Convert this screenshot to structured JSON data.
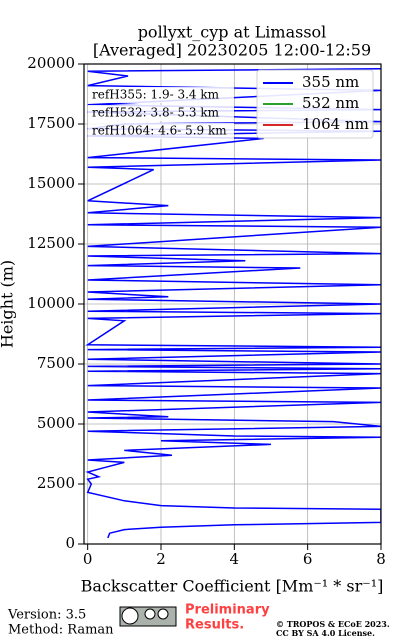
{
  "chart_data": {
    "type": "line",
    "title": [
      "pollyxt_cyp at Limassol",
      "[Averaged] 20230205 12:00-12:59"
    ],
    "x_label": "Backscatter Coefficient [Mm⁻¹ * sr⁻¹]",
    "y_label": "Height (m)",
    "xlim": [
      -0.1,
      8
    ],
    "xticks": [
      0,
      2,
      4,
      6,
      8
    ],
    "ylim": [
      0,
      20000
    ],
    "yticks": [
      0,
      2500,
      5000,
      7500,
      10000,
      12500,
      15000,
      17500,
      20000
    ],
    "grid": true,
    "legend": "upper right",
    "annotations": [
      "refH355:  1.9- 3.4 km",
      "refH532:  3.8- 5.3 km",
      "refH1064:  4.6- 5.9 km"
    ],
    "series": [
      {
        "name": "355 nm",
        "color": "#0000ff",
        "x": [
          0.55,
          0.6,
          1.0,
          2,
          4,
          6,
          8,
          8,
          4,
          2,
          1,
          0,
          0.1,
          0,
          0.3,
          0,
          0.5,
          1,
          0,
          2.3,
          1,
          5,
          2,
          8,
          4,
          0,
          8,
          6.7,
          0,
          2.2,
          0,
          8,
          0,
          8,
          0,
          8,
          0,
          8,
          0,
          8,
          0,
          8,
          0,
          8,
          0,
          1,
          0,
          8,
          0,
          8,
          0,
          2.2,
          0,
          8,
          0,
          5.8,
          0,
          4.3,
          0,
          8,
          0,
          8,
          0,
          8,
          0,
          2.2,
          0,
          1.8,
          0,
          8,
          0,
          4.8,
          0,
          8,
          0,
          1,
          8,
          0,
          8,
          0,
          8,
          0,
          1.1,
          0,
          8
        ],
        "values": [
          250,
          450,
          600,
          700,
          800,
          850,
          900,
          1450,
          1500,
          1600,
          1800,
          2150,
          2500,
          2700,
          2800,
          3000,
          3200,
          3400,
          3500,
          3700,
          3900,
          4150,
          4300,
          4450,
          4500,
          4700,
          4900,
          5100,
          5250,
          5300,
          5500,
          5900,
          6000,
          6500,
          6600,
          7100,
          7200,
          7300,
          7400,
          7500,
          7700,
          8000,
          8100,
          8200,
          8300,
          9300,
          9400,
          9600,
          9700,
          10000,
          10200,
          10300,
          10500,
          10800,
          11000,
          11500,
          11600,
          11800,
          12000,
          12100,
          12400,
          13200,
          13300,
          13600,
          13800,
          14100,
          14300,
          15600,
          15700,
          16000,
          16100,
          16900,
          17000,
          17200,
          17300,
          17500,
          17600,
          18000,
          18100,
          18300,
          18900,
          19100,
          19500,
          19700,
          19800
        ]
      },
      {
        "name": "532 nm",
        "color": "#2ca02c",
        "x": [],
        "values": []
      },
      {
        "name": "1064 nm",
        "color": "#d62728",
        "x": [],
        "values": []
      }
    ]
  },
  "footer": {
    "version": "Version: 3.5",
    "method": "Method: Raman",
    "preliminary": [
      "Preliminary",
      "Results."
    ],
    "copyright": [
      "© TROPOS & ECoE 2023.",
      "CC BY SA 4.0 License."
    ]
  }
}
